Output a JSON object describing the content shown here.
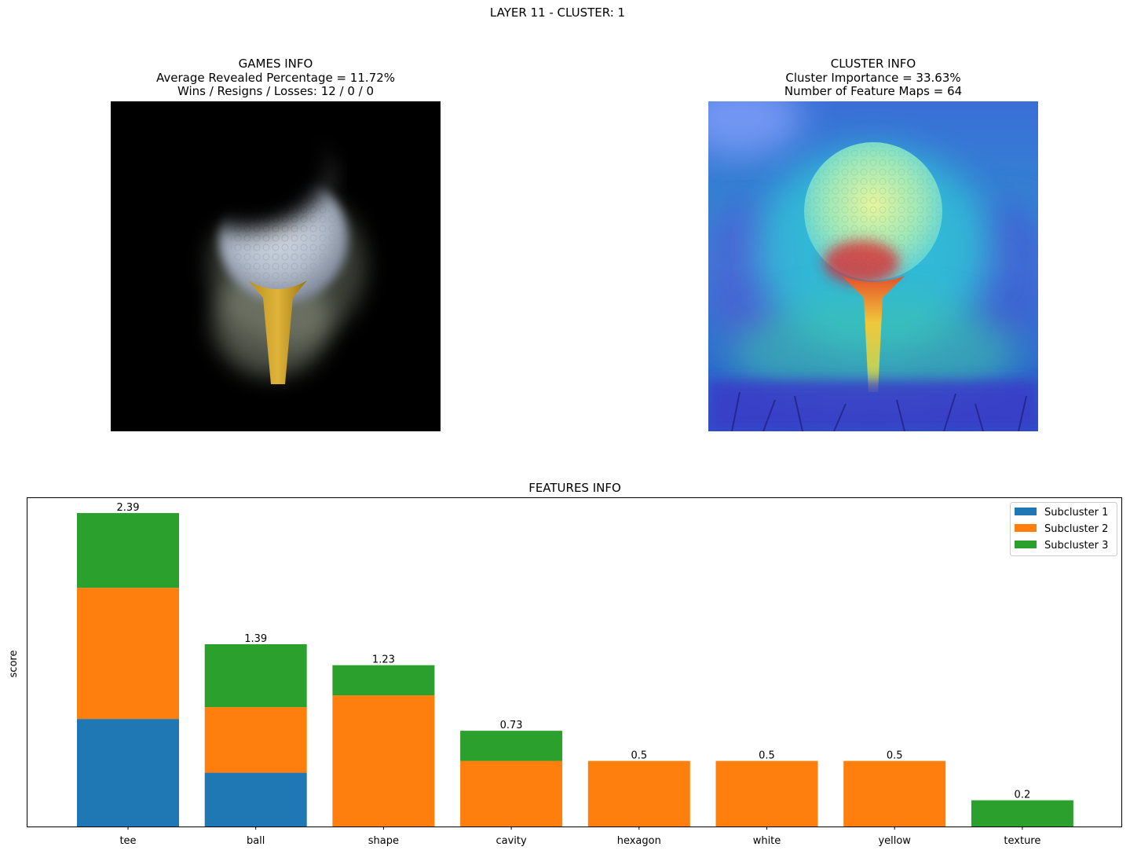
{
  "suptitle": "LAYER 11 - CLUSTER: 1",
  "games_info": {
    "title": "GAMES INFO",
    "line1": "Average Revealed Percentage = 11.72%",
    "line2": "Wins / Resigns / Losses: 12 / 0 / 0"
  },
  "cluster_info": {
    "title": "CLUSTER INFO",
    "line1": "Cluster Importance = 33.63%",
    "line2": "Number of Feature Maps = 64"
  },
  "chart_data": {
    "type": "bar",
    "stacked": true,
    "title": "FEATURES INFO",
    "xlabel": "",
    "ylabel": "score",
    "categories": [
      "tee",
      "ball",
      "shape",
      "cavity",
      "hexagon",
      "white",
      "yellow",
      "texture"
    ],
    "series": [
      {
        "name": "Subcluster 1",
        "color": "#1f77b4",
        "values": [
          0.82,
          0.41,
          0,
          0,
          0,
          0,
          0,
          0
        ]
      },
      {
        "name": "Subcluster 2",
        "color": "#ff7f0e",
        "values": [
          1.0,
          0.5,
          1.0,
          0.5,
          0.5,
          0.5,
          0.5,
          0
        ]
      },
      {
        "name": "Subcluster 3",
        "color": "#2ca02c",
        "values": [
          0.57,
          0.48,
          0.23,
          0.23,
          0,
          0,
          0,
          0.2
        ]
      }
    ],
    "totals": [
      "2.39",
      "1.39",
      "1.23",
      "0.73",
      "0.5",
      "0.5",
      "0.5",
      "0.2"
    ],
    "ylim": [
      0,
      2.51
    ],
    "yticks_shown": false,
    "grid": false,
    "legend_position": "top-right"
  }
}
